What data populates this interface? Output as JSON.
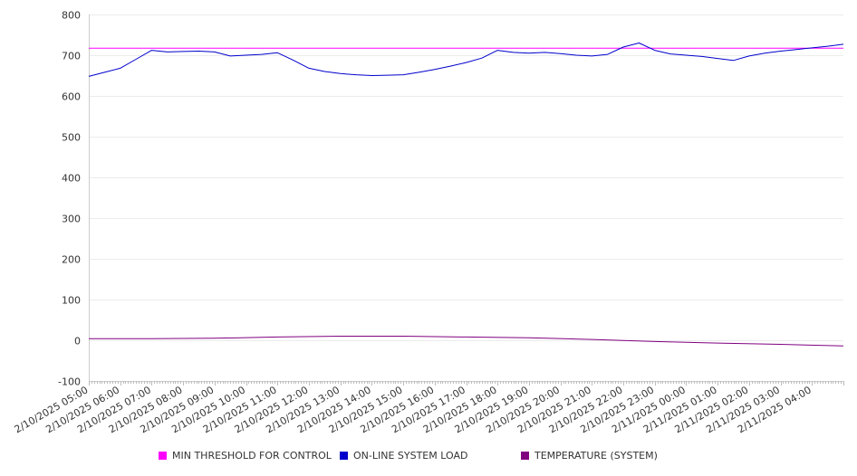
{
  "chart_data": {
    "type": "line",
    "y_ticks": [
      800,
      700,
      600,
      500,
      400,
      300,
      200,
      100,
      0,
      -100
    ],
    "ylim": [
      -100,
      800
    ],
    "x_ticks": [
      "2/10/2025 05:00",
      "2/10/2025 06:00",
      "2/10/2025 07:00",
      "2/10/2025 08:00",
      "2/10/2025 09:00",
      "2/10/2025 10:00",
      "2/10/2025 11:00",
      "2/10/2025 12:00",
      "2/10/2025 13:00",
      "2/10/2025 14:00",
      "2/10/2025 15:00",
      "2/10/2025 16:00",
      "2/10/2025 17:00",
      "2/10/2025 18:00",
      "2/10/2025 19:00",
      "2/10/2025 20:00",
      "2/10/2025 21:00",
      "2/10/2025 22:00",
      "2/10/2025 23:00",
      "2/11/2025 00:00",
      "2/11/2025 01:00",
      "2/11/2025 02:00",
      "2/11/2025 03:00",
      "2/11/2025 04:00"
    ],
    "xlim": [
      "2/10/2025 05:00",
      "2/11/2025 05:00"
    ],
    "grid": true,
    "legend_position": "bottom",
    "series": [
      {
        "name": "MIN THRESHOLD FOR CONTROL",
        "color": "#ff00ff",
        "x": [
          "2/10/2025 05:00",
          "2/11/2025 05:00"
        ],
        "values": [
          717,
          717
        ]
      },
      {
        "name": "ON-LINE SYSTEM LOAD",
        "color": "#0000cc",
        "x": [
          "2/10/2025 05:00",
          "2/10/2025 05:30",
          "2/10/2025 06:00",
          "2/10/2025 06:30",
          "2/10/2025 07:00",
          "2/10/2025 07:30",
          "2/10/2025 08:00",
          "2/10/2025 08:30",
          "2/10/2025 09:00",
          "2/10/2025 09:30",
          "2/10/2025 10:00",
          "2/10/2025 10:30",
          "2/10/2025 11:00",
          "2/10/2025 11:30",
          "2/10/2025 12:00",
          "2/10/2025 12:30",
          "2/10/2025 13:00",
          "2/10/2025 13:30",
          "2/10/2025 14:00",
          "2/10/2025 14:30",
          "2/10/2025 15:00",
          "2/10/2025 15:30",
          "2/10/2025 16:00",
          "2/10/2025 16:30",
          "2/10/2025 17:00",
          "2/10/2025 17:30",
          "2/10/2025 18:00",
          "2/10/2025 18:30",
          "2/10/2025 19:00",
          "2/10/2025 19:30",
          "2/10/2025 20:00",
          "2/10/2025 20:30",
          "2/10/2025 21:00",
          "2/10/2025 21:30",
          "2/10/2025 22:00",
          "2/10/2025 22:30",
          "2/10/2025 23:00",
          "2/10/2025 23:30",
          "2/11/2025 00:00",
          "2/11/2025 00:30",
          "2/11/2025 01:00",
          "2/11/2025 01:30",
          "2/11/2025 02:00",
          "2/11/2025 02:30",
          "2/11/2025 03:00",
          "2/11/2025 03:30",
          "2/11/2025 04:00",
          "2/11/2025 04:30",
          "2/11/2025 05:00"
        ],
        "values": [
          648,
          658,
          668,
          690,
          712,
          708,
          709,
          710,
          708,
          698,
          700,
          702,
          706,
          688,
          668,
          660,
          655,
          652,
          650,
          651,
          652,
          658,
          665,
          673,
          682,
          693,
          712,
          707,
          705,
          707,
          704,
          700,
          698,
          702,
          720,
          730,
          712,
          703,
          700,
          697,
          692,
          687,
          698,
          705,
          710,
          714,
          718,
          722,
          727
        ]
      },
      {
        "name": "TEMPERATURE (SYSTEM)",
        "color": "#800080",
        "x": [
          "2/10/2025 05:00",
          "2/10/2025 07:00",
          "2/10/2025 09:00",
          "2/10/2025 11:00",
          "2/10/2025 13:00",
          "2/10/2025 15:00",
          "2/10/2025 17:00",
          "2/10/2025 19:00",
          "2/10/2025 21:00",
          "2/10/2025 23:00",
          "2/11/2025 01:00",
          "2/11/2025 03:00",
          "2/11/2025 05:00"
        ],
        "values": [
          4,
          4,
          5,
          8,
          10,
          10,
          8,
          6,
          2,
          -3,
          -7,
          -10,
          -14
        ]
      }
    ]
  }
}
